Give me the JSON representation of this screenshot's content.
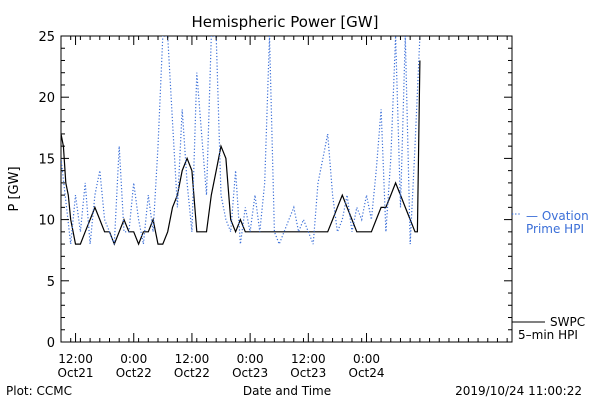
{
  "chart_data": {
    "type": "line",
    "title": "Hemispheric Power [GW]",
    "xlabel": "Date and Time",
    "ylabel": "P [GW]",
    "ylim": [
      0,
      25
    ],
    "xlim": [
      "2019-10-21 09:00",
      "2019-10-25 06:00"
    ],
    "yticks": [
      "0",
      "5",
      "10",
      "15",
      "20",
      "25"
    ],
    "xticks": [
      {
        "top": "12:00",
        "bottom": "Oct21",
        "x": "2019-10-21 12:00"
      },
      {
        "top": "0:00",
        "bottom": "Oct22",
        "x": "2019-10-22 00:00"
      },
      {
        "top": "12:00",
        "bottom": "Oct22",
        "x": "2019-10-22 12:00"
      },
      {
        "top": "0:00",
        "bottom": "Oct23",
        "x": "2019-10-23 00:00"
      },
      {
        "top": "12:00",
        "bottom": "Oct23",
        "x": "2019-10-23 12:00"
      },
      {
        "top": "0:00",
        "bottom": "Oct24",
        "x": "2019-10-24 00:00"
      }
    ],
    "series": [
      {
        "name": "SWPC 5-min HPI",
        "color": "#000000",
        "style": "solid",
        "x": [
          "2019-10-21 09:00",
          "2019-10-21 09:30",
          "2019-10-21 10:00",
          "2019-10-21 10:30",
          "2019-10-21 11:00",
          "2019-10-21 11:30",
          "2019-10-21 12:00",
          "2019-10-21 13:00",
          "2019-10-21 14:00",
          "2019-10-21 15:00",
          "2019-10-21 16:00",
          "2019-10-21 17:00",
          "2019-10-21 18:00",
          "2019-10-21 19:00",
          "2019-10-21 20:00",
          "2019-10-21 21:00",
          "2019-10-21 22:00",
          "2019-10-21 23:00",
          "2019-10-22 00:00",
          "2019-10-22 01:00",
          "2019-10-22 02:00",
          "2019-10-22 03:00",
          "2019-10-22 04:00",
          "2019-10-22 05:00",
          "2019-10-22 06:00",
          "2019-10-22 07:00",
          "2019-10-22 08:00",
          "2019-10-22 09:00",
          "2019-10-22 10:00",
          "2019-10-22 11:00",
          "2019-10-22 12:00",
          "2019-10-22 13:00",
          "2019-10-22 14:00",
          "2019-10-22 15:00",
          "2019-10-22 16:00",
          "2019-10-22 17:00",
          "2019-10-22 18:00",
          "2019-10-22 19:00",
          "2019-10-22 20:00",
          "2019-10-22 21:00",
          "2019-10-22 22:00",
          "2019-10-22 23:00",
          "2019-10-23 00:00",
          "2019-10-23 02:00",
          "2019-10-23 04:00",
          "2019-10-23 06:00",
          "2019-10-23 08:00",
          "2019-10-23 10:00",
          "2019-10-23 12:00",
          "2019-10-23 14:00",
          "2019-10-23 16:00",
          "2019-10-23 17:00",
          "2019-10-23 18:00",
          "2019-10-23 19:00",
          "2019-10-23 20:00",
          "2019-10-23 21:00",
          "2019-10-23 22:00",
          "2019-10-23 23:00",
          "2019-10-24 00:00",
          "2019-10-24 01:00",
          "2019-10-24 02:00",
          "2019-10-24 03:00",
          "2019-10-24 04:00",
          "2019-10-24 05:00",
          "2019-10-24 06:00",
          "2019-10-24 07:00",
          "2019-10-24 08:00",
          "2019-10-24 09:00",
          "2019-10-24 10:00",
          "2019-10-24 10:30",
          "2019-10-24 11:00"
        ],
        "y": [
          17,
          16,
          13,
          12,
          10,
          9,
          8,
          8,
          9,
          10,
          11,
          10,
          9,
          9,
          8,
          9,
          10,
          9,
          9,
          8,
          9,
          9,
          10,
          8,
          8,
          9,
          11,
          12,
          14,
          15,
          14,
          9,
          9,
          9,
          12,
          14,
          16,
          15,
          10,
          9,
          10,
          9,
          9,
          9,
          9,
          9,
          9,
          9,
          9,
          9,
          9,
          10,
          11,
          12,
          11,
          10,
          9,
          9,
          9,
          9,
          10,
          11,
          11,
          12,
          13,
          12,
          11,
          10,
          9,
          9,
          23
        ]
      },
      {
        "name": "Ovation Prime HPI",
        "color": "#3b6fd8",
        "style": "dotted",
        "x": [
          "2019-10-21 09:00",
          "2019-10-21 11:00",
          "2019-10-21 12:00",
          "2019-10-21 13:00",
          "2019-10-21 14:00",
          "2019-10-21 15:00",
          "2019-10-21 16:00",
          "2019-10-21 17:00",
          "2019-10-21 18:00",
          "2019-10-21 19:00",
          "2019-10-21 20:00",
          "2019-10-21 21:00",
          "2019-10-21 22:00",
          "2019-10-21 23:00",
          "2019-10-22 00:00",
          "2019-10-22 01:00",
          "2019-10-22 02:00",
          "2019-10-22 03:00",
          "2019-10-22 04:00",
          "2019-10-22 05:00",
          "2019-10-22 06:00",
          "2019-10-22 07:00",
          "2019-10-22 08:00",
          "2019-10-22 09:00",
          "2019-10-22 10:00",
          "2019-10-22 11:00",
          "2019-10-22 12:00",
          "2019-10-22 13:00",
          "2019-10-22 14:00",
          "2019-10-22 15:00",
          "2019-10-22 16:00",
          "2019-10-22 17:00",
          "2019-10-22 18:00",
          "2019-10-22 19:00",
          "2019-10-22 20:00",
          "2019-10-22 21:00",
          "2019-10-22 22:00",
          "2019-10-22 23:00",
          "2019-10-23 00:00",
          "2019-10-23 01:00",
          "2019-10-23 02:00",
          "2019-10-23 03:00",
          "2019-10-23 04:00",
          "2019-10-23 05:00",
          "2019-10-23 06:00",
          "2019-10-23 07:00",
          "2019-10-23 08:00",
          "2019-10-23 09:00",
          "2019-10-23 10:00",
          "2019-10-23 11:00",
          "2019-10-23 12:00",
          "2019-10-23 13:00",
          "2019-10-23 14:00",
          "2019-10-23 15:00",
          "2019-10-23 16:00",
          "2019-10-23 17:00",
          "2019-10-23 18:00",
          "2019-10-23 19:00",
          "2019-10-23 20:00",
          "2019-10-23 21:00",
          "2019-10-23 22:00",
          "2019-10-23 23:00",
          "2019-10-24 00:00",
          "2019-10-24 01:00",
          "2019-10-24 02:00",
          "2019-10-24 03:00",
          "2019-10-24 04:00",
          "2019-10-24 05:00",
          "2019-10-24 06:00",
          "2019-10-24 07:00",
          "2019-10-24 08:00",
          "2019-10-24 09:00",
          "2019-10-24 10:00",
          "2019-10-24 11:00"
        ],
        "y": [
          15,
          8,
          12,
          9,
          13,
          8,
          12,
          14,
          10,
          9,
          8,
          16,
          9,
          9,
          13,
          10,
          8,
          12,
          9,
          16,
          25,
          25,
          18,
          11,
          19,
          13,
          9,
          22,
          17,
          12,
          25,
          25,
          12,
          10,
          9,
          14,
          8,
          11,
          9,
          12,
          9,
          13,
          25,
          9,
          8,
          9,
          10,
          11,
          9,
          10,
          9,
          8,
          13,
          15,
          17,
          12,
          9,
          10,
          12,
          9,
          11,
          10,
          12,
          10,
          14,
          19,
          9,
          15,
          25,
          11,
          25,
          8,
          16,
          25
        ]
      }
    ],
    "legend": [
      {
        "line1": "— Ovation",
        "line2": "Prime HPI",
        "color": "#3b6fd8",
        "placement": "right-middle"
      },
      {
        "line1": "SWPC",
        "line2": "5–min HPI",
        "color": "#000000",
        "placement": "right-bottom"
      }
    ],
    "footer": {
      "left": "Plot: CCMC",
      "right": "2019/10/24 11:00:22"
    }
  }
}
